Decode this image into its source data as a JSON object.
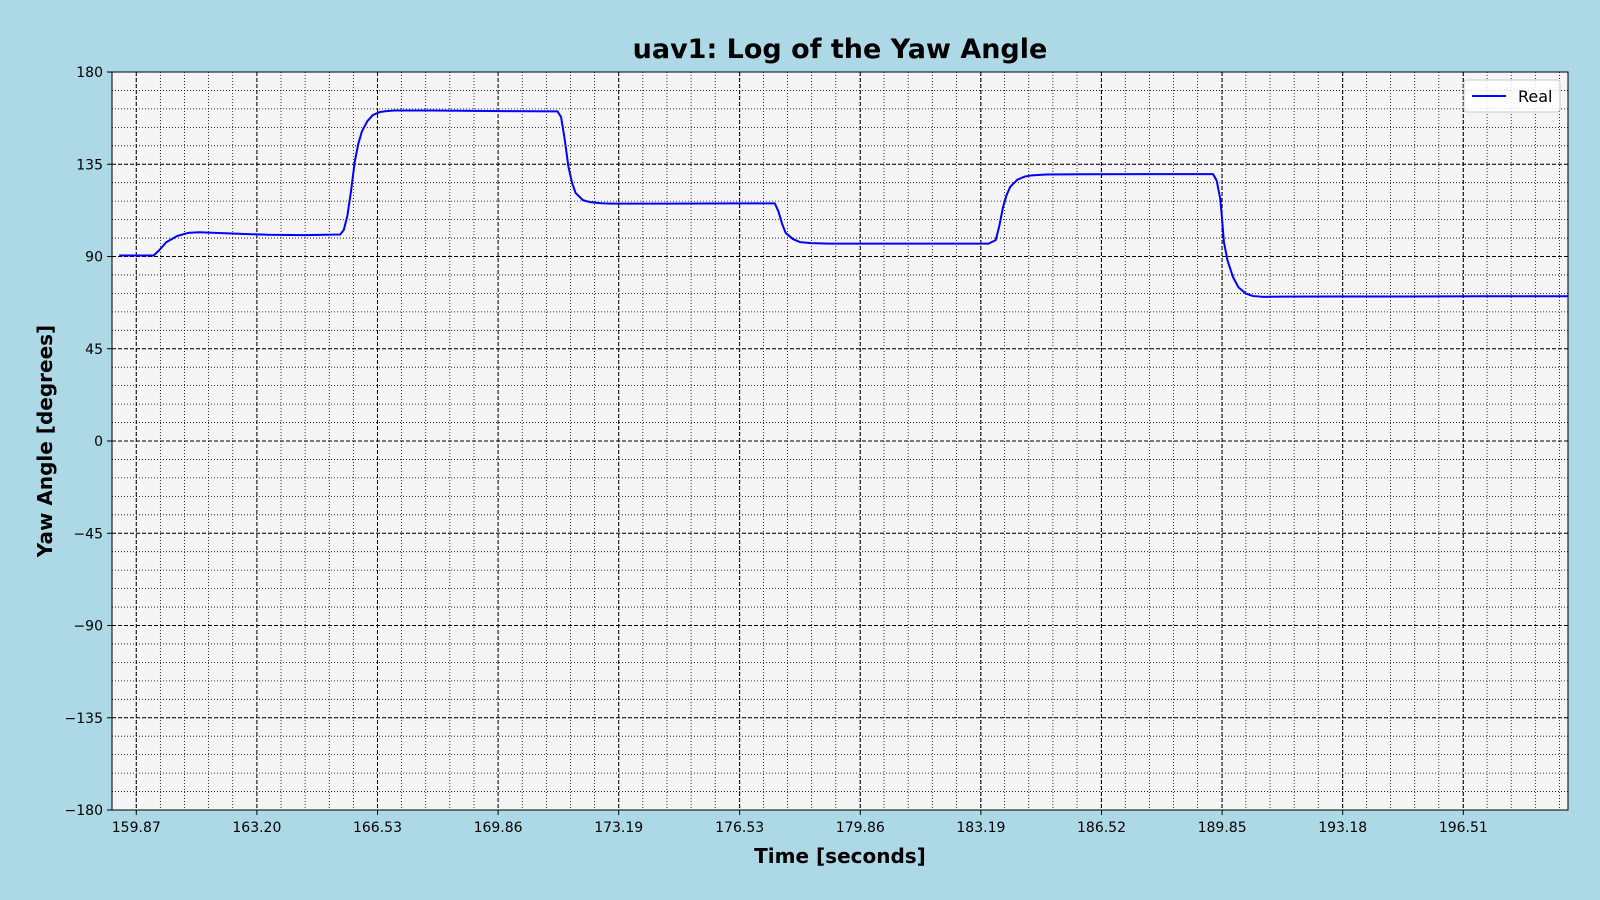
{
  "chart_data": {
    "type": "line",
    "title": "uav1: Log of the Yaw Angle",
    "xlabel": "Time [seconds]",
    "ylabel": "Yaw Angle [degrees]",
    "xlim": [
      159.2,
      199.4
    ],
    "ylim": [
      -180,
      180
    ],
    "x_ticks": [
      159.87,
      163.2,
      166.53,
      169.86,
      173.19,
      176.53,
      179.86,
      183.19,
      186.52,
      189.85,
      193.18,
      196.51
    ],
    "x_tick_labels": [
      "159.87",
      "163.20",
      "166.53",
      "169.86",
      "173.19",
      "176.53",
      "179.86",
      "183.19",
      "186.52",
      "189.85",
      "193.18",
      "196.51"
    ],
    "y_ticks": [
      -180,
      -135,
      -90,
      -45,
      0,
      45,
      90,
      135,
      180
    ],
    "y_tick_labels": [
      "−180",
      "−135",
      "−90",
      "−45",
      "0",
      "45",
      "90",
      "135",
      "180"
    ],
    "grid": true,
    "minor_grid": true,
    "legend": {
      "position": "top-right",
      "entries": [
        "Real"
      ]
    },
    "series": [
      {
        "name": "Real",
        "color": "#0000ff",
        "x": [
          159.4,
          160.35,
          160.5,
          160.7,
          161.0,
          161.3,
          161.6,
          162.5,
          163.5,
          164.5,
          165.5,
          165.6,
          165.7,
          165.8,
          165.9,
          166.0,
          166.1,
          166.25,
          166.4,
          166.6,
          166.8,
          167.0,
          168.0,
          170.0,
          171.5,
          171.6,
          171.7,
          171.8,
          171.9,
          172.0,
          172.2,
          172.4,
          172.7,
          173.0,
          174.5,
          176.5,
          177.5,
          177.6,
          177.7,
          177.8,
          178.0,
          178.2,
          178.5,
          179.0,
          181.0,
          183.4,
          183.6,
          183.7,
          183.8,
          183.9,
          184.0,
          184.2,
          184.4,
          184.6,
          185.0,
          186.0,
          188.0,
          189.6,
          189.7,
          189.8,
          189.85,
          189.9,
          190.0,
          190.15,
          190.3,
          190.5,
          190.7,
          191.0,
          191.5,
          193.0,
          195.0,
          197.0,
          199.4
        ],
        "y": [
          90.5,
          90.5,
          93,
          97,
          100,
          101.5,
          101.8,
          101.2,
          100.6,
          100.4,
          100.7,
          103,
          110,
          122,
          136,
          145,
          151,
          156,
          159,
          160.5,
          161,
          161.2,
          161.2,
          160.9,
          160.8,
          158,
          147,
          134,
          126,
          121,
          117.5,
          116.5,
          116,
          115.8,
          115.8,
          115.9,
          115.9,
          112,
          106,
          101.5,
          98.5,
          97,
          96.5,
          96.3,
          96.3,
          96.3,
          98,
          105,
          114,
          120,
          124,
          127.5,
          129,
          129.6,
          130,
          130.1,
          130.2,
          130.2,
          127,
          118,
          108,
          97,
          88,
          80,
          75,
          72,
          70.7,
          70.3,
          70.4,
          70.5,
          70.5,
          70.6,
          70.6
        ]
      }
    ]
  }
}
